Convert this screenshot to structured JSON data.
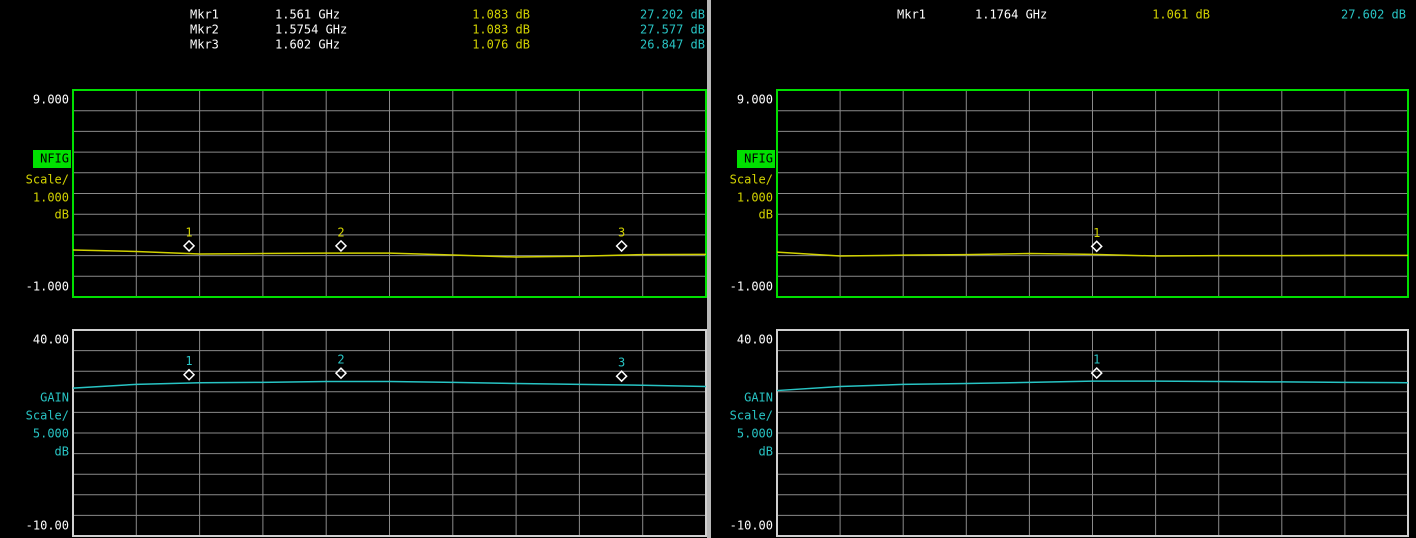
{
  "panels": [
    {
      "marker_names": [
        "Mkr1",
        "Mkr2",
        "Mkr3"
      ],
      "marker_ids": [
        "1",
        "2",
        "3"
      ],
      "marker_freq": [
        1.561,
        1.5754,
        1.602
      ],
      "marker_freq_labels": [
        "1.561 GHz",
        "1.5754 GHz",
        "1.602 GHz"
      ],
      "nf_values": [
        1.083,
        1.083,
        1.076
      ],
      "nf_labels": [
        "1.083 dB",
        "1.083 dB",
        "1.076 dB"
      ],
      "gain_values": [
        27.202,
        27.577,
        26.847
      ],
      "gain_labels": [
        "27.202 dB",
        "27.577 dB",
        "26.847 dB"
      ],
      "xlim": [
        1.55,
        1.61
      ],
      "trace_x": [
        1.55,
        1.556,
        1.562,
        1.568,
        1.574,
        1.58,
        1.586,
        1.592,
        1.598,
        1.604,
        1.61
      ],
      "nf": {
        "name": "NFIG",
        "scale_label": "Scale/",
        "scale": "1.000",
        "unit": "dB",
        "color": "#d2d200",
        "border": "#00e000",
        "ylim": [
          -1,
          9
        ],
        "yticks": [
          {
            "value": 9,
            "label": "9.000"
          },
          {
            "value": -1,
            "label": "-1.000"
          }
        ],
        "trace": [
          1.27,
          1.2,
          1.08,
          1.1,
          1.12,
          1.12,
          1.03,
          0.93,
          0.97,
          1.05,
          1.06
        ]
      },
      "gain": {
        "name": "GAIN",
        "scale_label": "Scale/",
        "scale": "5.000",
        "unit": "dB",
        "color": "#28c4c4",
        "border": "#d0d0d0",
        "ylim": [
          -10,
          40
        ],
        "yticks": [
          {
            "value": 40,
            "label": "40.00"
          },
          {
            "value": -10,
            "label": "-10.00"
          }
        ],
        "trace": [
          25.9,
          26.8,
          27.2,
          27.3,
          27.5,
          27.5,
          27.3,
          27.0,
          26.8,
          26.6,
          26.3
        ]
      }
    },
    {
      "marker_names": [
        "Mkr1"
      ],
      "marker_ids": [
        "1"
      ],
      "marker_freq": [
        1.1764
      ],
      "marker_freq_labels": [
        "1.1764 GHz"
      ],
      "nf_values": [
        1.061
      ],
      "nf_labels": [
        "1.061 dB"
      ],
      "gain_values": [
        27.602
      ],
      "gain_labels": [
        "27.602 dB"
      ],
      "xlim": [
        1.146,
        1.206
      ],
      "trace_x": [
        1.146,
        1.152,
        1.158,
        1.164,
        1.17,
        1.176,
        1.182,
        1.188,
        1.194,
        1.2,
        1.206
      ],
      "nf": {
        "name": "NFIG",
        "scale_label": "Scale/",
        "scale": "1.000",
        "unit": "dB",
        "color": "#d2d200",
        "border": "#00e000",
        "ylim": [
          -1,
          9
        ],
        "yticks": [
          {
            "value": 9,
            "label": "9.000"
          },
          {
            "value": -1,
            "label": "-1.000"
          }
        ],
        "trace": [
          1.17,
          0.98,
          1.02,
          1.05,
          1.1,
          1.06,
          0.98,
          1.0,
          1.0,
          1.01,
          1.01
        ]
      },
      "gain": {
        "name": "GAIN",
        "scale_label": "Scale/",
        "scale": "5.000",
        "unit": "dB",
        "color": "#28c4c4",
        "border": "#d0d0d0",
        "ylim": [
          -10,
          40
        ],
        "yticks": [
          {
            "value": 40,
            "label": "40.00"
          },
          {
            "value": -10,
            "label": "-10.00"
          }
        ],
        "trace": [
          25.3,
          26.3,
          26.8,
          27.0,
          27.3,
          27.6,
          27.6,
          27.5,
          27.4,
          27.3,
          27.2
        ]
      }
    }
  ]
}
